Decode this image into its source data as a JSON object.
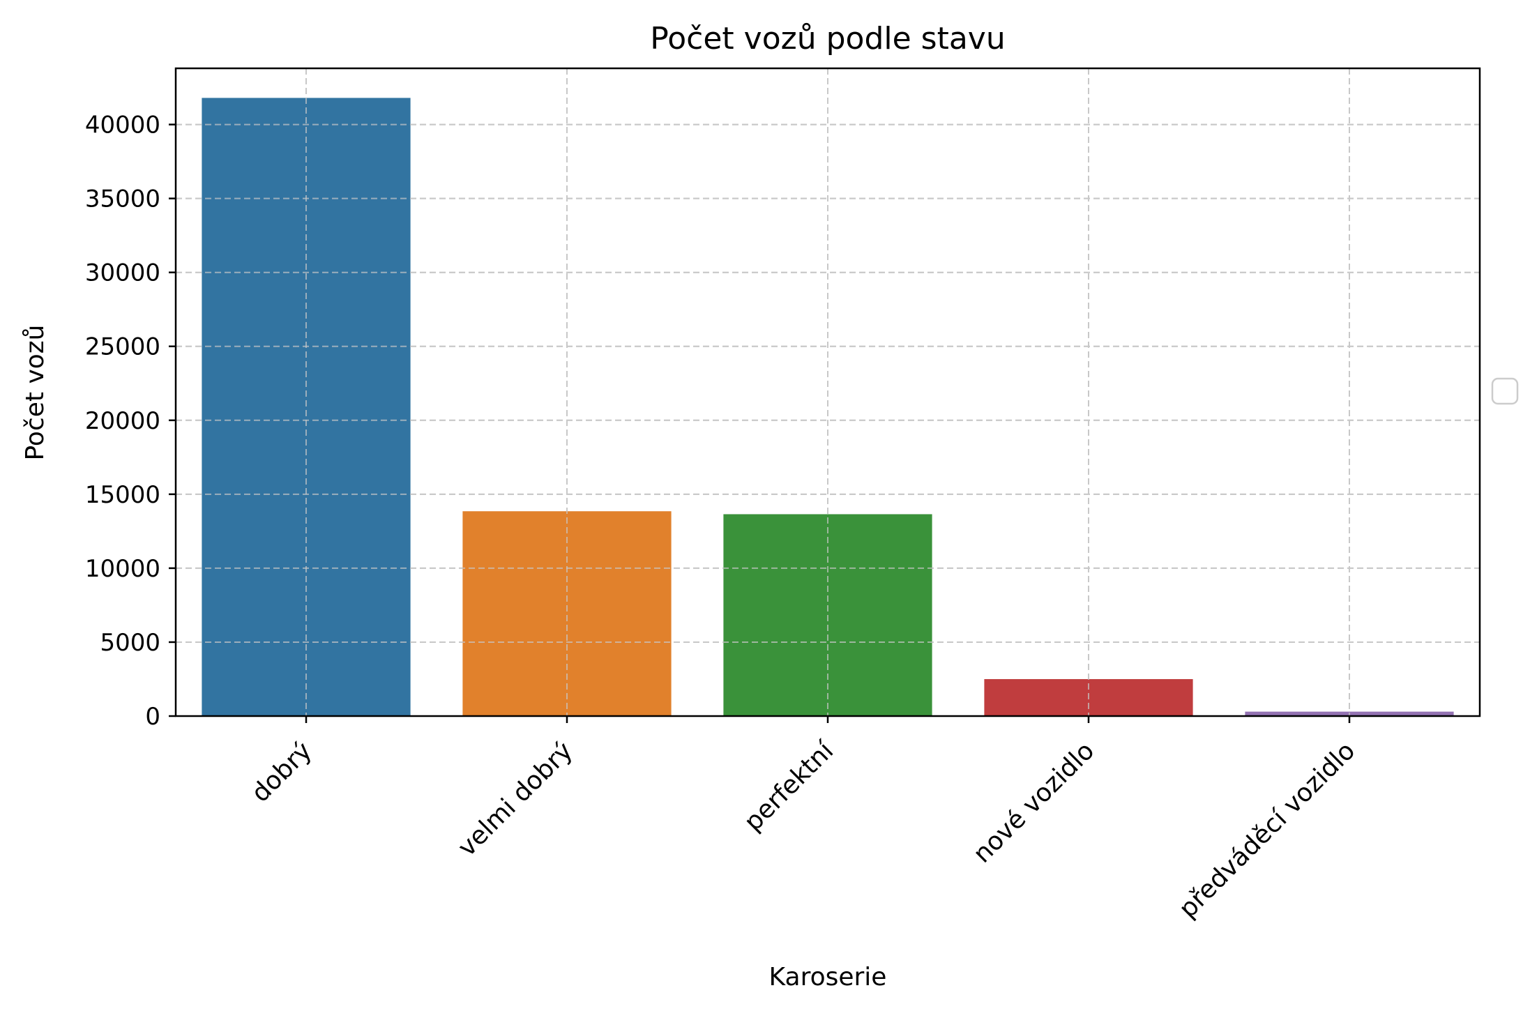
{
  "chart_data": {
    "type": "bar",
    "title": "Počet vozů podle stavu",
    "xlabel": "Karoserie",
    "ylabel": "Počet vozů",
    "categories": [
      "dobrý",
      "velmi dobrý",
      "perfektní",
      "nové vozidlo",
      "předváděcí vozidlo"
    ],
    "values": [
      41800,
      13850,
      13650,
      2500,
      300
    ],
    "colors": [
      "#3274a1",
      "#e1812c",
      "#3a923a",
      "#c03d3e",
      "#9372b2"
    ],
    "ylim": [
      0,
      43800
    ],
    "yticks": [
      0,
      5000,
      10000,
      15000,
      20000,
      25000,
      30000,
      35000,
      40000
    ],
    "grid": true,
    "legend": "empty, center-right outside plot"
  }
}
